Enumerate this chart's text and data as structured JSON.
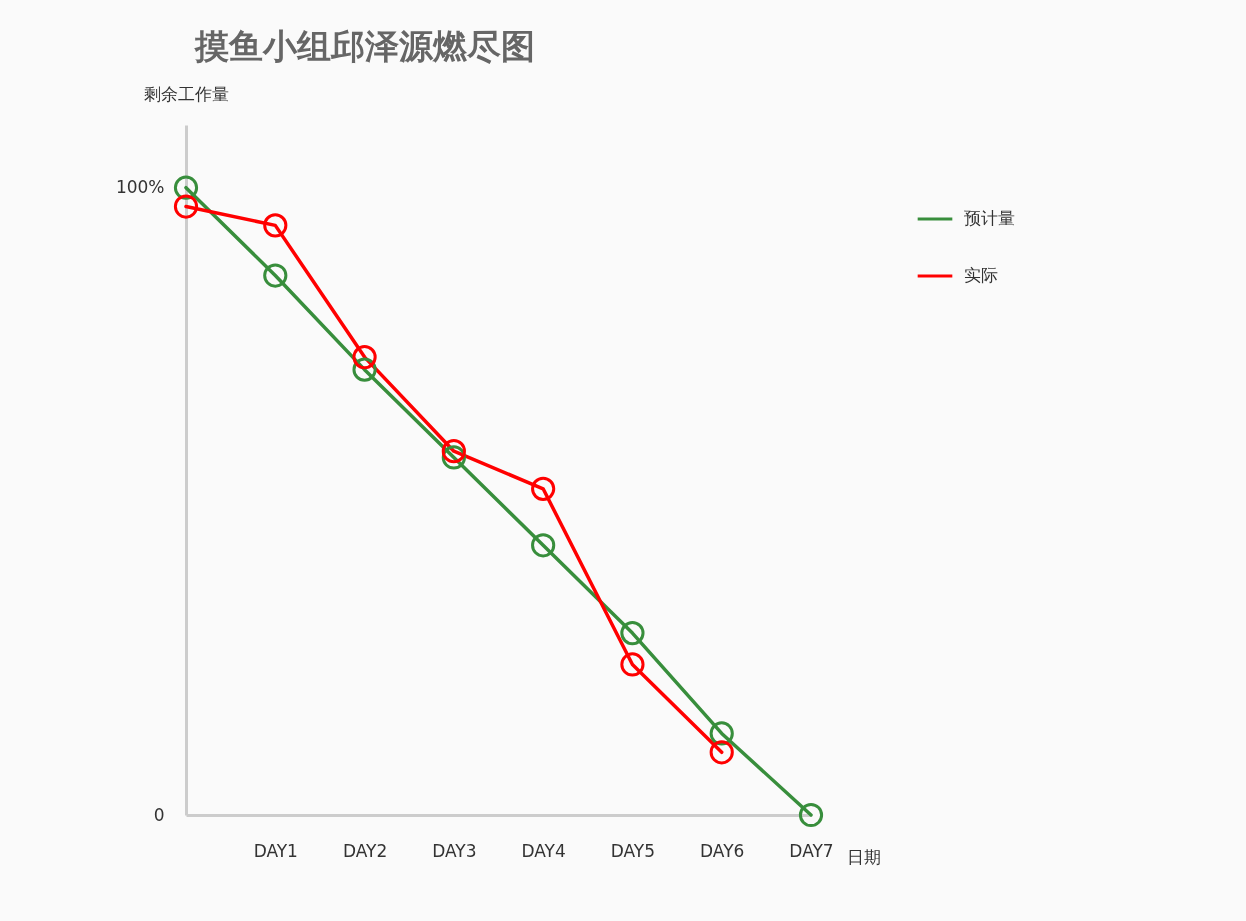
{
  "chart_data": {
    "type": "line",
    "title": "摸鱼小组邱泽源燃尽图",
    "xlabel": "日期",
    "ylabel": "剩余工作量",
    "categories": [
      null,
      "DAY1",
      "DAY2",
      "DAY3",
      "DAY4",
      "DAY5",
      "DAY6",
      "DAY7"
    ],
    "series": [
      {
        "name": "预计量",
        "color": "#388e3c",
        "values": [
          100,
          86,
          71,
          57,
          43,
          29,
          13,
          0
        ]
      },
      {
        "name": "实际",
        "color": "#ff0000",
        "values": [
          97,
          94,
          73,
          58,
          52,
          24,
          10,
          null
        ]
      }
    ],
    "ylim": [
      0,
      110
    ],
    "yticks": [
      0,
      {
        "value": 100,
        "label": "100%"
      }
    ],
    "grid": false,
    "legend": "top right",
    "marker": "circle",
    "line_style": "solid"
  }
}
